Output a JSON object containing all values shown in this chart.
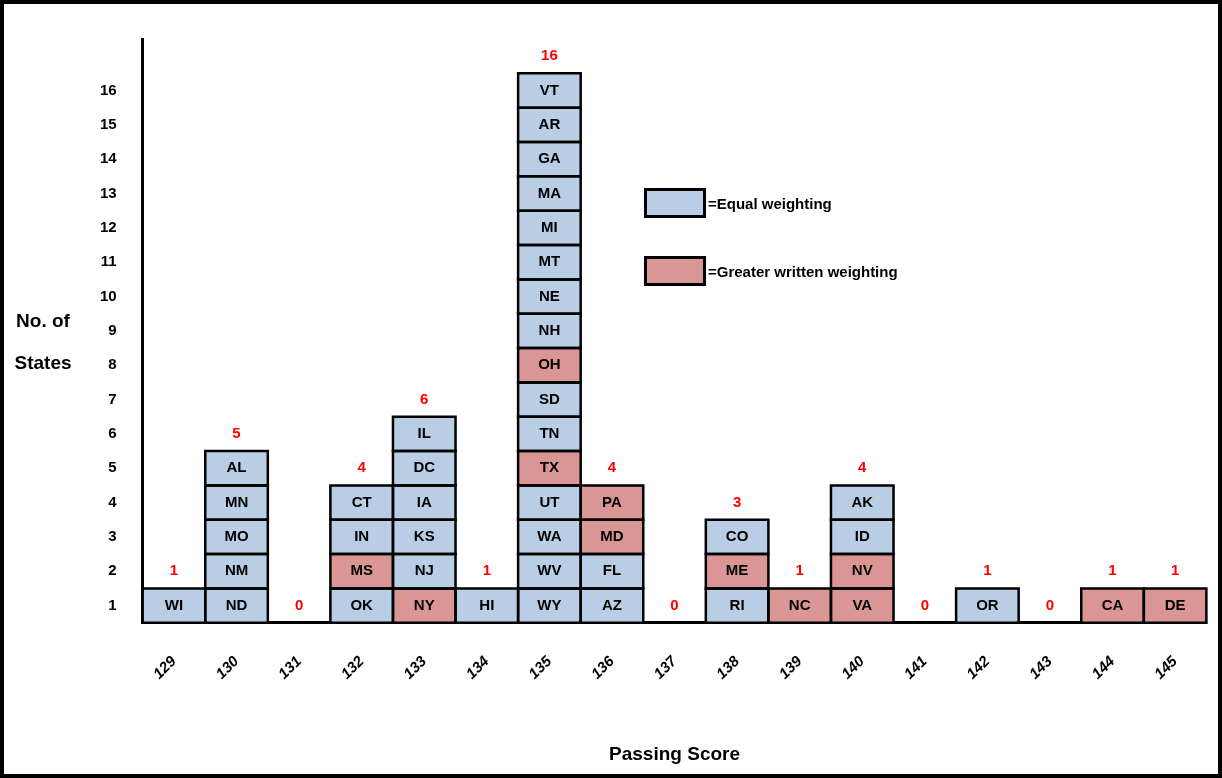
{
  "chart_data": {
    "type": "bar",
    "stacked": true,
    "xlabel": "Passing Score",
    "ylabel": "No. of States",
    "categories": [
      "129",
      "130",
      "131",
      "132",
      "133",
      "134",
      "135",
      "136",
      "137",
      "138",
      "139",
      "140",
      "141",
      "142",
      "143",
      "144",
      "145"
    ],
    "ylim": [
      0,
      17
    ],
    "yticks": [
      {
        "value": 0.5,
        "label": "1"
      },
      {
        "value": 1.5,
        "label": "2"
      },
      {
        "value": 2.5,
        "label": "3"
      },
      {
        "value": 3.5,
        "label": "4"
      },
      {
        "value": 4.5,
        "label": "5"
      },
      {
        "value": 5.5,
        "label": "6"
      },
      {
        "value": 6.5,
        "label": "7"
      },
      {
        "value": 7.5,
        "label": "8"
      },
      {
        "value": 8.5,
        "label": "9"
      },
      {
        "value": 9.5,
        "label": "10"
      },
      {
        "value": 10.5,
        "label": "11"
      },
      {
        "value": 11.5,
        "label": "12"
      },
      {
        "value": 12.5,
        "label": "13"
      },
      {
        "value": 13.5,
        "label": "14"
      },
      {
        "value": 14.5,
        "label": "15"
      },
      {
        "value": 15.5,
        "label": "16"
      }
    ],
    "series": [
      {
        "values": [
          1,
          1,
          null,
          1,
          1,
          1,
          1,
          1,
          null,
          1,
          1,
          1,
          null,
          1,
          null,
          1,
          1
        ],
        "colors": [
          "#b9cde5",
          "#b9cde5",
          null,
          "#b9cde5",
          "#da9694",
          "#b9cde5",
          "#b9cde5",
          "#b9cde5",
          null,
          "#b9cde5",
          "#da9694",
          "#da9694",
          null,
          "#b9cde5",
          null,
          "#da9694",
          "#da9694"
        ],
        "value_labels": [
          "WI",
          "ND",
          null,
          "OK",
          "NY",
          "HI",
          "WY",
          "AZ",
          null,
          "RI",
          "NC",
          "VA",
          null,
          "OR",
          null,
          "CA",
          "DE"
        ]
      },
      {
        "values": [
          null,
          1,
          null,
          1,
          1,
          null,
          1,
          1,
          null,
          1,
          null,
          1,
          null,
          null,
          null,
          null,
          null
        ],
        "colors": [
          null,
          "#b9cde5",
          null,
          "#da9694",
          "#b9cde5",
          null,
          "#b9cde5",
          "#b9cde5",
          null,
          "#da9694",
          null,
          "#da9694",
          null,
          null,
          null,
          null,
          null
        ],
        "value_labels": [
          null,
          "NM",
          null,
          "MS",
          "NJ",
          null,
          "WV",
          "FL",
          null,
          "ME",
          null,
          "NV",
          null,
          null,
          null,
          null,
          null
        ]
      },
      {
        "values": [
          null,
          1,
          null,
          1,
          1,
          null,
          1,
          1,
          null,
          1,
          null,
          1,
          null,
          null,
          null,
          null,
          null
        ],
        "colors": [
          null,
          "#b9cde5",
          null,
          "#b9cde5",
          "#b9cde5",
          null,
          "#b9cde5",
          "#da9694",
          null,
          "#b9cde5",
          null,
          "#b9cde5",
          null,
          null,
          null,
          null,
          null
        ],
        "value_labels": [
          null,
          "MO",
          null,
          "IN",
          "KS",
          null,
          "WA",
          "MD",
          null,
          "CO",
          null,
          "ID",
          null,
          null,
          null,
          null,
          null
        ]
      },
      {
        "values": [
          null,
          1,
          null,
          1,
          1,
          null,
          1,
          1,
          null,
          null,
          null,
          1,
          null,
          null,
          null,
          null,
          null
        ],
        "colors": [
          null,
          "#b9cde5",
          null,
          "#b9cde5",
          "#b9cde5",
          null,
          "#b9cde5",
          "#da9694",
          null,
          null,
          null,
          "#b9cde5",
          null,
          null,
          null,
          null,
          null
        ],
        "value_labels": [
          null,
          "MN",
          null,
          "CT",
          "IA",
          null,
          "UT",
          "PA",
          null,
          null,
          null,
          "AK",
          null,
          null,
          null,
          null,
          null
        ]
      },
      {
        "values": [
          null,
          1,
          null,
          null,
          1,
          null,
          1,
          null,
          null,
          null,
          null,
          null,
          null,
          null,
          null,
          null,
          null
        ],
        "colors": [
          null,
          "#b9cde5",
          null,
          null,
          "#b9cde5",
          null,
          "#da9694",
          null,
          null,
          null,
          null,
          null,
          null,
          null,
          null,
          null,
          null
        ],
        "value_labels": [
          null,
          "AL",
          null,
          null,
          "DC",
          null,
          "TX",
          null,
          null,
          null,
          null,
          null,
          null,
          null,
          null,
          null,
          null
        ]
      },
      {
        "values": [
          null,
          null,
          null,
          null,
          1,
          null,
          1,
          null,
          null,
          null,
          null,
          null,
          null,
          null,
          null,
          null,
          null
        ],
        "colors": [
          null,
          null,
          null,
          null,
          "#b9cde5",
          null,
          "#b9cde5",
          null,
          null,
          null,
          null,
          null,
          null,
          null,
          null,
          null,
          null
        ],
        "value_labels": [
          null,
          null,
          null,
          null,
          "IL",
          null,
          "TN",
          null,
          null,
          null,
          null,
          null,
          null,
          null,
          null,
          null,
          null
        ]
      },
      {
        "values": [
          null,
          null,
          null,
          null,
          null,
          null,
          1,
          null,
          null,
          null,
          null,
          null,
          null,
          null,
          null,
          null,
          null
        ],
        "colors": [
          null,
          null,
          null,
          null,
          null,
          null,
          "#b9cde5",
          null,
          null,
          null,
          null,
          null,
          null,
          null,
          null,
          null,
          null
        ],
        "value_labels": [
          null,
          null,
          null,
          null,
          null,
          null,
          "SD",
          null,
          null,
          null,
          null,
          null,
          null,
          null,
          null,
          null,
          null
        ]
      },
      {
        "values": [
          null,
          null,
          null,
          null,
          null,
          null,
          1,
          null,
          null,
          null,
          null,
          null,
          null,
          null,
          null,
          null,
          null
        ],
        "colors": [
          null,
          null,
          null,
          null,
          null,
          null,
          "#da9694",
          null,
          null,
          null,
          null,
          null,
          null,
          null,
          null,
          null,
          null
        ],
        "value_labels": [
          null,
          null,
          null,
          null,
          null,
          null,
          "OH",
          null,
          null,
          null,
          null,
          null,
          null,
          null,
          null,
          null,
          null
        ]
      },
      {
        "values": [
          null,
          null,
          null,
          null,
          null,
          null,
          1,
          null,
          null,
          null,
          null,
          null,
          null,
          null,
          null,
          null,
          null
        ],
        "colors": [
          null,
          null,
          null,
          null,
          null,
          null,
          "#b9cde5",
          null,
          null,
          null,
          null,
          null,
          null,
          null,
          null,
          null,
          null
        ],
        "value_labels": [
          null,
          null,
          null,
          null,
          null,
          null,
          "NH",
          null,
          null,
          null,
          null,
          null,
          null,
          null,
          null,
          null,
          null
        ]
      },
      {
        "values": [
          null,
          null,
          null,
          null,
          null,
          null,
          1,
          null,
          null,
          null,
          null,
          null,
          null,
          null,
          null,
          null,
          null
        ],
        "colors": [
          null,
          null,
          null,
          null,
          null,
          null,
          "#b9cde5",
          null,
          null,
          null,
          null,
          null,
          null,
          null,
          null,
          null,
          null
        ],
        "value_labels": [
          null,
          null,
          null,
          null,
          null,
          null,
          "NE",
          null,
          null,
          null,
          null,
          null,
          null,
          null,
          null,
          null,
          null
        ]
      },
      {
        "values": [
          null,
          null,
          null,
          null,
          null,
          null,
          1,
          null,
          null,
          null,
          null,
          null,
          null,
          null,
          null,
          null,
          null
        ],
        "colors": [
          null,
          null,
          null,
          null,
          null,
          null,
          "#b9cde5",
          null,
          null,
          null,
          null,
          null,
          null,
          null,
          null,
          null,
          null
        ],
        "value_labels": [
          null,
          null,
          null,
          null,
          null,
          null,
          "MT",
          null,
          null,
          null,
          null,
          null,
          null,
          null,
          null,
          null,
          null
        ]
      },
      {
        "values": [
          null,
          null,
          null,
          null,
          null,
          null,
          1,
          null,
          null,
          null,
          null,
          null,
          null,
          null,
          null,
          null,
          null
        ],
        "colors": [
          null,
          null,
          null,
          null,
          null,
          null,
          "#b9cde5",
          null,
          null,
          null,
          null,
          null,
          null,
          null,
          null,
          null,
          null
        ],
        "value_labels": [
          null,
          null,
          null,
          null,
          null,
          null,
          "MI",
          null,
          null,
          null,
          null,
          null,
          null,
          null,
          null,
          null,
          null
        ]
      },
      {
        "values": [
          null,
          null,
          null,
          null,
          null,
          null,
          1,
          null,
          null,
          null,
          null,
          null,
          null,
          null,
          null,
          null,
          null
        ],
        "colors": [
          null,
          null,
          null,
          null,
          null,
          null,
          "#b9cde5",
          null,
          null,
          null,
          null,
          null,
          null,
          null,
          null,
          null,
          null
        ],
        "value_labels": [
          null,
          null,
          null,
          null,
          null,
          null,
          "MA",
          null,
          null,
          null,
          null,
          null,
          null,
          null,
          null,
          null,
          null
        ]
      },
      {
        "values": [
          null,
          null,
          null,
          null,
          null,
          null,
          1,
          null,
          null,
          null,
          null,
          null,
          null,
          null,
          null,
          null,
          null
        ],
        "colors": [
          null,
          null,
          null,
          null,
          null,
          null,
          "#b9cde5",
          null,
          null,
          null,
          null,
          null,
          null,
          null,
          null,
          null,
          null
        ],
        "value_labels": [
          null,
          null,
          null,
          null,
          null,
          null,
          "GA",
          null,
          null,
          null,
          null,
          null,
          null,
          null,
          null,
          null,
          null
        ]
      },
      {
        "values": [
          null,
          null,
          null,
          null,
          null,
          null,
          1,
          null,
          null,
          null,
          null,
          null,
          null,
          null,
          null,
          null,
          null
        ],
        "colors": [
          null,
          null,
          null,
          null,
          null,
          null,
          "#b9cde5",
          null,
          null,
          null,
          null,
          null,
          null,
          null,
          null,
          null,
          null
        ],
        "value_labels": [
          null,
          null,
          null,
          null,
          null,
          null,
          "AR",
          null,
          null,
          null,
          null,
          null,
          null,
          null,
          null,
          null,
          null
        ]
      },
      {
        "values": [
          null,
          null,
          null,
          null,
          null,
          null,
          1,
          null,
          null,
          null,
          null,
          null,
          null,
          null,
          null,
          null,
          null
        ],
        "colors": [
          null,
          null,
          null,
          null,
          null,
          null,
          "#b9cde5",
          null,
          null,
          null,
          null,
          null,
          null,
          null,
          null,
          null,
          null
        ],
        "value_labels": [
          null,
          null,
          null,
          null,
          null,
          null,
          "VT",
          null,
          null,
          null,
          null,
          null,
          null,
          null,
          null,
          null,
          null
        ]
      }
    ],
    "totals": [
      "1",
      "5",
      "0",
      "4",
      "6",
      "1",
      "16",
      "4",
      "0",
      "3",
      "1",
      "4",
      "0",
      "1",
      "0",
      "1",
      "1"
    ],
    "annotations": [
      "=Equal weighting",
      "=Greater written weighting"
    ]
  }
}
